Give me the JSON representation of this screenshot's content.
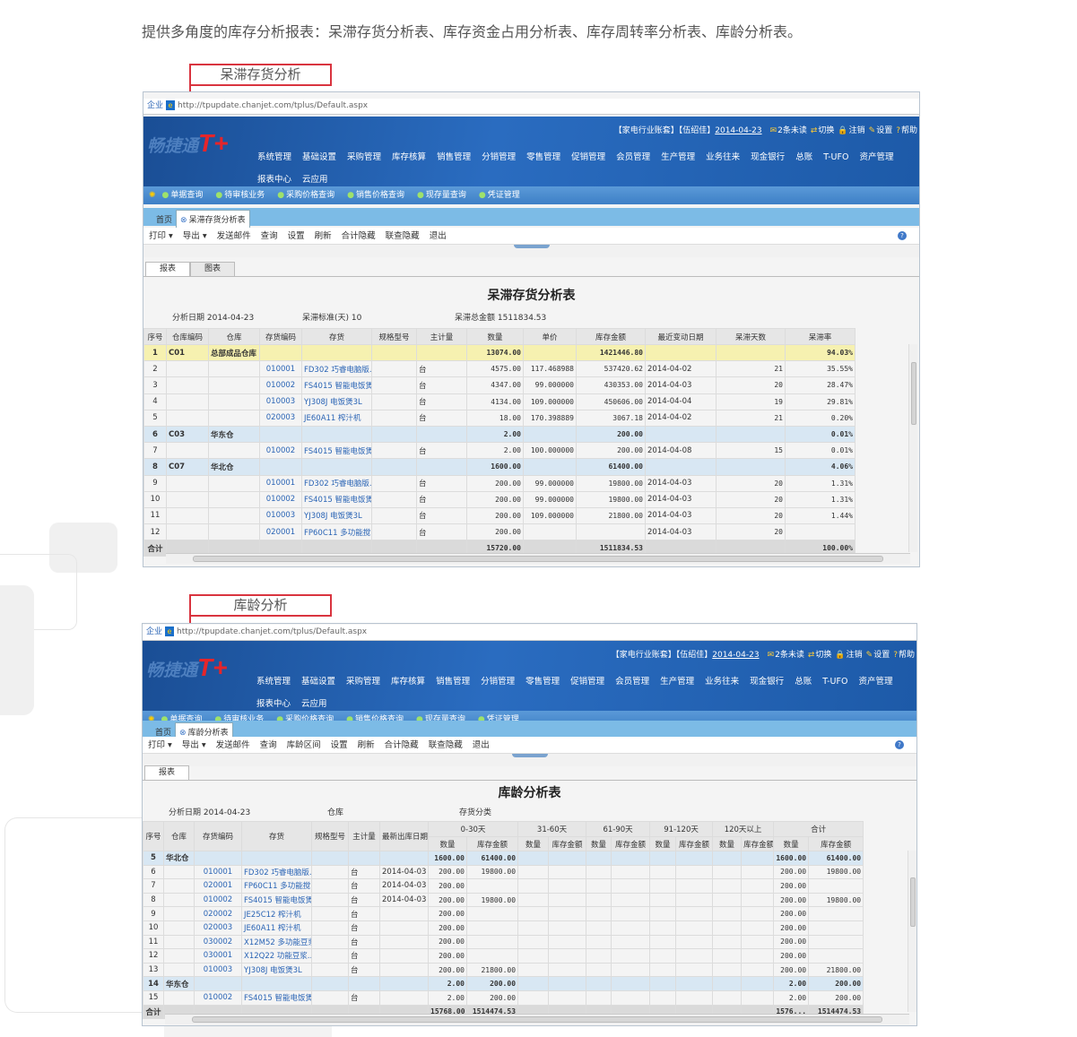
{
  "intro": "提供多角度的库存分析报表：呆滞存货分析表、库存资金占用分析表、库存周转率分析表、库龄分析表。",
  "common": {
    "addr_prefix": "企业",
    "url": "http://tpupdate.chanjet.com/tplus/Default.aspx",
    "logo_text": "畅捷通",
    "logo_mark": "T+",
    "user_info": "【家电行业账套】【伍绍佳】",
    "date": "2014-04-23",
    "user_links": [
      "2条未读",
      "切换",
      "注销",
      "设置",
      "帮助"
    ],
    "menu": [
      "系统管理",
      "基础设置",
      "采购管理",
      "库存核算",
      "销售管理",
      "分销管理",
      "零售管理",
      "促销管理",
      "会员管理",
      "生产管理",
      "业务往来",
      "现金银行",
      "总账",
      "T-UFO",
      "资产管理",
      "报表中心",
      "云应用"
    ],
    "quick": [
      "单据查询",
      "待审核业务",
      "采购价格查询",
      "销售价格查询",
      "现存量查询",
      "凭证管理"
    ],
    "home_tab": "首页",
    "colors": {
      "header": "#1f5eae",
      "accent": "#d9343f",
      "link": "#2a64b5"
    }
  },
  "s1": {
    "label": "呆滞存货分析",
    "tab": "呆滞存货分析表",
    "toolbar": [
      "打印 ▾",
      "导出 ▾",
      "发送邮件",
      "查询",
      "设置",
      "刷新",
      "合计隐藏",
      "联查隐藏",
      "退出"
    ],
    "rtabs": [
      "报表",
      "图表"
    ],
    "title": "呆滞存货分析表",
    "info": [
      "分析日期  2014-04-23",
      "呆滞标准(天)  10",
      "呆滞总金额  1511834.53"
    ],
    "headers": [
      "序号",
      "仓库编码",
      "仓库",
      "存货编码",
      "存货",
      "规格型号",
      "主计量",
      "数量",
      "单价",
      "库存金额",
      "最近变动日期",
      "呆滞天数",
      "呆滞率"
    ],
    "rows": [
      {
        "t": "yel",
        "c": [
          "1",
          "C01",
          "总部成品仓库",
          "",
          "",
          "",
          "",
          "13074.00",
          "",
          "1421446.80",
          "",
          "",
          "94.03%"
        ]
      },
      {
        "c": [
          "2",
          "",
          "",
          "010001",
          "FD302 巧睿电脑版...",
          "",
          "台",
          "4575.00",
          "117.468988",
          "537420.62",
          "2014-04-02",
          "21",
          "35.55%"
        ]
      },
      {
        "c": [
          "3",
          "",
          "",
          "010002",
          "FS4015 智能电饭煲4L",
          "",
          "台",
          "4347.00",
          "99.000000",
          "430353.00",
          "2014-04-03",
          "20",
          "28.47%"
        ]
      },
      {
        "c": [
          "4",
          "",
          "",
          "010003",
          "YJ308J 电饭煲3L",
          "",
          "台",
          "4134.00",
          "109.000000",
          "450606.00",
          "2014-04-04",
          "19",
          "29.81%"
        ]
      },
      {
        "c": [
          "5",
          "",
          "",
          "020003",
          "JE60A11 榨汁机",
          "",
          "台",
          "18.00",
          "170.398889",
          "3067.18",
          "2014-04-02",
          "21",
          "0.20%"
        ]
      },
      {
        "t": "blu",
        "c": [
          "6",
          "C03",
          "华东仓",
          "",
          "",
          "",
          "",
          "2.00",
          "",
          "200.00",
          "",
          "",
          "0.01%"
        ]
      },
      {
        "c": [
          "7",
          "",
          "",
          "010002",
          "FS4015 智能电饭煲4L",
          "",
          "台",
          "2.00",
          "100.000000",
          "200.00",
          "2014-04-08",
          "15",
          "0.01%"
        ]
      },
      {
        "t": "blu",
        "c": [
          "8",
          "C07",
          "华北仓",
          "",
          "",
          "",
          "",
          "1600.00",
          "",
          "61400.00",
          "",
          "",
          "4.06%"
        ]
      },
      {
        "c": [
          "9",
          "",
          "",
          "010001",
          "FD302 巧睿电脑版...",
          "",
          "台",
          "200.00",
          "99.000000",
          "19800.00",
          "2014-04-03",
          "20",
          "1.31%"
        ]
      },
      {
        "c": [
          "10",
          "",
          "",
          "010002",
          "FS4015 智能电饭煲4L",
          "",
          "台",
          "200.00",
          "99.000000",
          "19800.00",
          "2014-04-03",
          "20",
          "1.31%"
        ]
      },
      {
        "c": [
          "11",
          "",
          "",
          "010003",
          "YJ308J 电饭煲3L",
          "",
          "台",
          "200.00",
          "109.000000",
          "21800.00",
          "2014-04-03",
          "20",
          "1.44%"
        ]
      },
      {
        "c": [
          "12",
          "",
          "",
          "020001",
          "FP60C11 多功能搅...",
          "",
          "台",
          "200.00",
          "",
          "",
          "2014-04-03",
          "20",
          ""
        ]
      },
      {
        "t": "tot",
        "c": [
          "合计",
          "",
          "",
          "",
          "",
          "",
          "",
          "15720.00",
          "",
          "1511834.53",
          "",
          "",
          "100.00%"
        ]
      }
    ]
  },
  "s2": {
    "label": "库龄分析",
    "tab": "库龄分析表",
    "toolbar": [
      "打印 ▾",
      "导出 ▾",
      "发送邮件",
      "查询",
      "库龄区间",
      "设置",
      "刷新",
      "合计隐藏",
      "联查隐藏",
      "退出"
    ],
    "rtabs": [
      "报表"
    ],
    "title": "库龄分析表",
    "info": [
      "分析日期  2014-04-23",
      "仓库",
      "存货分类"
    ],
    "headers": [
      "序号",
      "仓库",
      "存货编码",
      "存货",
      "规格型号",
      "主计量",
      "最新出库日期"
    ],
    "groups": [
      "0-30天",
      "31-60天",
      "61-90天",
      "91-120天",
      "120天以上",
      "合计"
    ],
    "sub": [
      "数量",
      "库存金额"
    ],
    "rows": [
      {
        "t": "blu",
        "c": [
          "5",
          "华北仓",
          "",
          "",
          "",
          "",
          "",
          "1600.00",
          "61400.00",
          "",
          "",
          "",
          "",
          "",
          "",
          "",
          "",
          "1600.00",
          "61400.00"
        ]
      },
      {
        "c": [
          "6",
          "",
          "010001",
          "FD302 巧睿电脑版...",
          "",
          "台",
          "2014-04-03",
          "200.00",
          "19800.00",
          "",
          "",
          "",
          "",
          "",
          "",
          "",
          "",
          "200.00",
          "19800.00"
        ]
      },
      {
        "c": [
          "7",
          "",
          "020001",
          "FP60C11 多功能搅...",
          "",
          "台",
          "2014-04-03",
          "200.00",
          "",
          "",
          "",
          "",
          "",
          "",
          "",
          "",
          "",
          "200.00",
          ""
        ]
      },
      {
        "c": [
          "8",
          "",
          "010002",
          "FS4015 智能电饭煲4L",
          "",
          "台",
          "2014-04-03",
          "200.00",
          "19800.00",
          "",
          "",
          "",
          "",
          "",
          "",
          "",
          "",
          "200.00",
          "19800.00"
        ]
      },
      {
        "c": [
          "9",
          "",
          "020002",
          "JE25C12 榨汁机",
          "",
          "台",
          "",
          "200.00",
          "",
          "",
          "",
          "",
          "",
          "",
          "",
          "",
          "",
          "200.00",
          ""
        ]
      },
      {
        "c": [
          "10",
          "",
          "020003",
          "JE60A11 榨汁机",
          "",
          "台",
          "",
          "200.00",
          "",
          "",
          "",
          "",
          "",
          "",
          "",
          "",
          "",
          "200.00",
          ""
        ]
      },
      {
        "c": [
          "11",
          "",
          "030002",
          "X12M52 多功能豆浆机",
          "",
          "台",
          "",
          "200.00",
          "",
          "",
          "",
          "",
          "",
          "",
          "",
          "",
          "",
          "200.00",
          ""
        ]
      },
      {
        "c": [
          "12",
          "",
          "030001",
          "X12Q22 功能豆浆...",
          "",
          "台",
          "",
          "200.00",
          "",
          "",
          "",
          "",
          "",
          "",
          "",
          "",
          "",
          "200.00",
          ""
        ]
      },
      {
        "c": [
          "13",
          "",
          "010003",
          "YJ308J 电饭煲3L",
          "",
          "台",
          "",
          "200.00",
          "21800.00",
          "",
          "",
          "",
          "",
          "",
          "",
          "",
          "",
          "200.00",
          "21800.00"
        ]
      },
      {
        "t": "blu",
        "c": [
          "14",
          "华东仓",
          "",
          "",
          "",
          "",
          "",
          "2.00",
          "200.00",
          "",
          "",
          "",
          "",
          "",
          "",
          "",
          "",
          "2.00",
          "200.00"
        ]
      },
      {
        "c": [
          "15",
          "",
          "010002",
          "FS4015 智能电饭煲4L",
          "",
          "台",
          "",
          "2.00",
          "200.00",
          "",
          "",
          "",
          "",
          "",
          "",
          "",
          "",
          "2.00",
          "200.00"
        ]
      },
      {
        "t": "tot",
        "c": [
          "合计",
          "",
          "",
          "",
          "",
          "",
          "",
          "15768.00",
          "1514474.53",
          "",
          "",
          "",
          "",
          "",
          "",
          "",
          "",
          "1576...",
          "1514474.53"
        ]
      }
    ]
  }
}
